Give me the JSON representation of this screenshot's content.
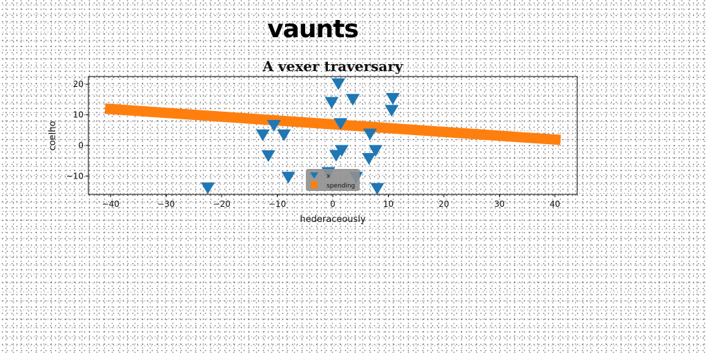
{
  "page": {
    "title": "vaunts"
  },
  "chart_data": {
    "type": "scatter",
    "title": "A vexer traversary",
    "xlabel": "hederaceously",
    "ylabel": "coelho",
    "xlim": [
      -44,
      44
    ],
    "ylim": [
      -16,
      22.5
    ],
    "xticks": [
      -40,
      -30,
      -20,
      -10,
      0,
      10,
      20,
      30,
      40
    ],
    "yticks": [
      -10,
      0,
      10,
      20
    ],
    "grid": false,
    "legend": {
      "position": "bottom-center"
    },
    "series": [
      {
        "name": "x",
        "kind": "scatter",
        "marker": "triangle-down",
        "color": "#1f77b4",
        "points": [
          {
            "x": 1.0,
            "y": 20.0
          },
          {
            "x": -0.2,
            "y": 13.9
          },
          {
            "x": 3.6,
            "y": 14.9
          },
          {
            "x": 10.8,
            "y": 15.2
          },
          {
            "x": 10.6,
            "y": 11.3
          },
          {
            "x": 1.4,
            "y": 7.0
          },
          {
            "x": -10.6,
            "y": 6.4
          },
          {
            "x": -12.6,
            "y": 3.3
          },
          {
            "x": -8.8,
            "y": 3.3
          },
          {
            "x": 6.7,
            "y": 3.6
          },
          {
            "x": -11.6,
            "y": -3.5
          },
          {
            "x": 1.6,
            "y": -1.8
          },
          {
            "x": 0.6,
            "y": -3.4
          },
          {
            "x": 7.7,
            "y": -1.8
          },
          {
            "x": 6.5,
            "y": -4.4
          },
          {
            "x": -8.0,
            "y": -10.5
          },
          {
            "x": -0.8,
            "y": -9.0
          },
          {
            "x": 4.2,
            "y": -10.5
          },
          {
            "x": -22.5,
            "y": -14.0
          },
          {
            "x": 8.0,
            "y": -14.2
          }
        ]
      },
      {
        "name": "spending",
        "kind": "line",
        "marker": "square",
        "color": "#ff7f0e",
        "points": [
          {
            "x": -41,
            "y": 12.0
          },
          {
            "x": 41,
            "y": 1.8
          }
        ]
      }
    ]
  }
}
